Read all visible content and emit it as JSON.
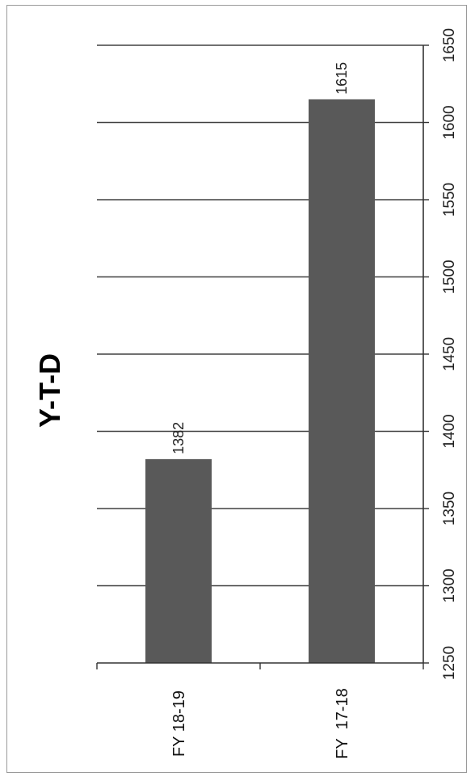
{
  "chart_data": {
    "type": "bar",
    "orientation": "rotated-90-ccw",
    "title": "Y-T-D",
    "categories": [
      "FY 18-19",
      "FY  17-18"
    ],
    "values": [
      1382,
      1615
    ],
    "data_labels": [
      "1382",
      "1615"
    ],
    "ylim": [
      1250,
      1650
    ],
    "yticks": [
      "1250",
      "1300",
      "1350",
      "1400",
      "1450",
      "1500",
      "1550",
      "1600",
      "1650"
    ],
    "grid": true,
    "legend": "none",
    "colors": {
      "bar": "#595959",
      "grid": "#404040"
    }
  }
}
